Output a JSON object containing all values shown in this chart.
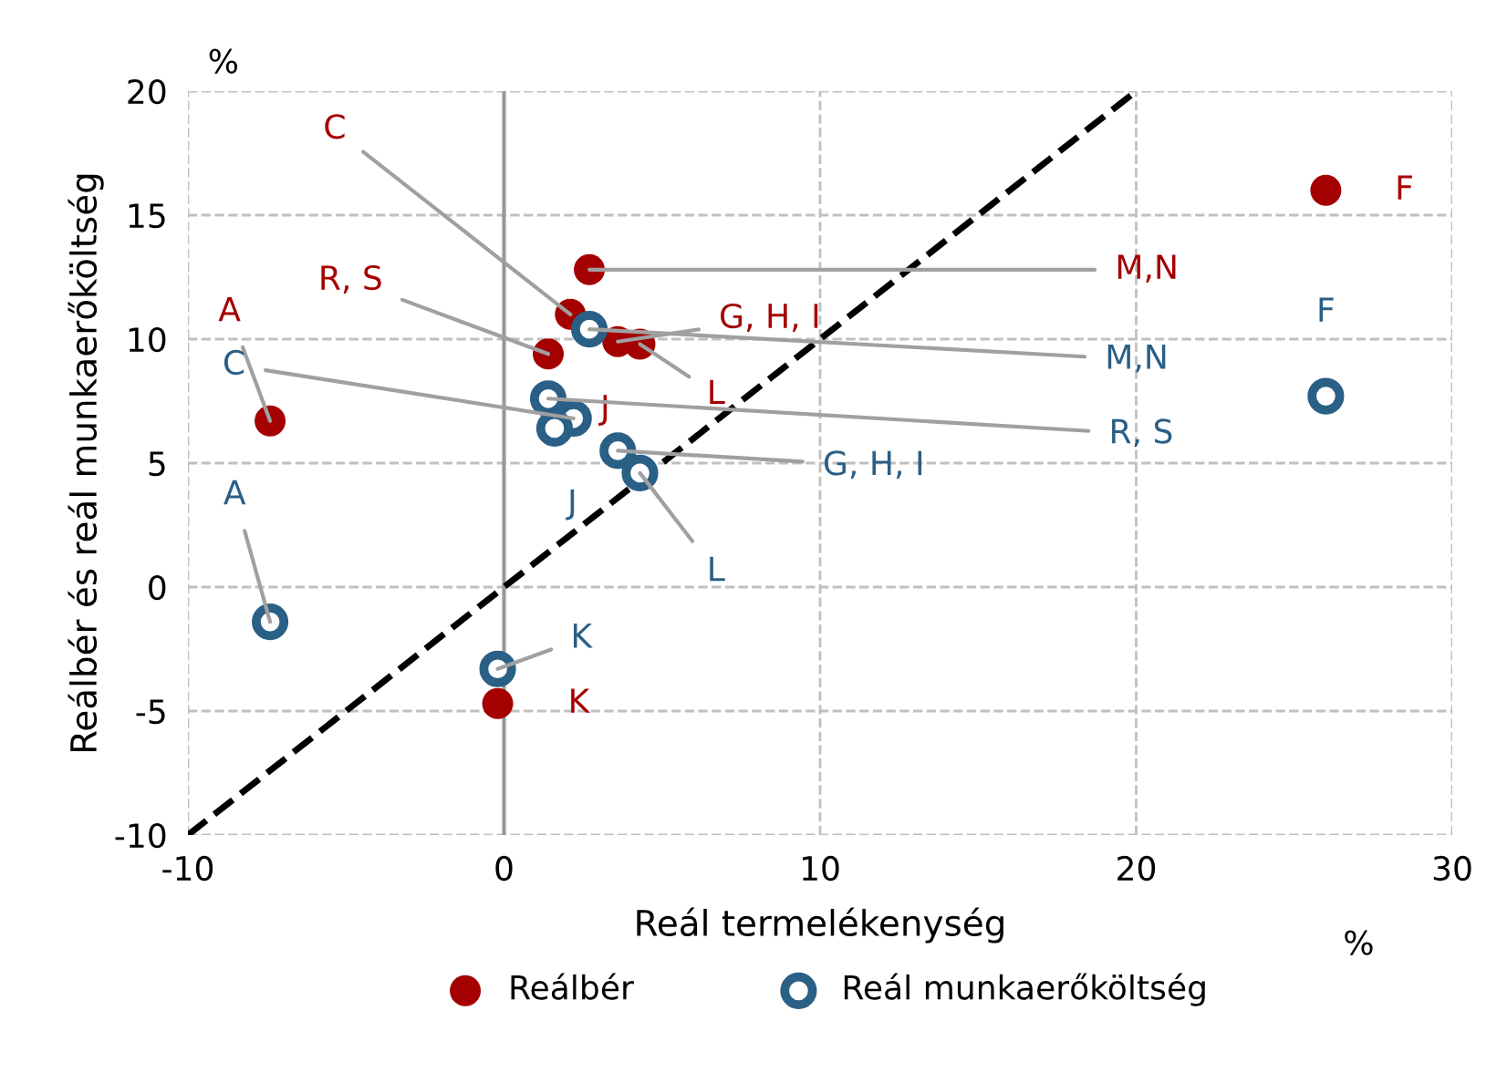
{
  "chart_data": {
    "type": "scatter",
    "xlabel": "Reál termelékenység",
    "ylabel": "Reálbér és reál munkaerőköltség",
    "xlim": [
      -10,
      30
    ],
    "ylim": [
      -10,
      20
    ],
    "xticks": [
      -10,
      0,
      10,
      20,
      30
    ],
    "yticks": [
      -10,
      -5,
      0,
      5,
      10,
      15,
      20
    ],
    "grid": true,
    "legend": "bottom",
    "marker": "circle",
    "ref_lines": [
      {
        "axis": "x",
        "value": 0,
        "color": "#999999"
      }
    ],
    "series": [
      {
        "type": "line",
        "x": [
          -10,
          20
        ],
        "values": [
          -10,
          20
        ],
        "color": "#000000",
        "line_style": "dashed",
        "marker": "none"
      },
      {
        "name": "Reálbér",
        "color": "#a50000",
        "x": [
          -7.4,
          26.0,
          2.7,
          2.1,
          1.4,
          3.6,
          4.3,
          -0.2
        ],
        "values": [
          6.7,
          16.0,
          12.8,
          11.0,
          9.4,
          9.9,
          9.8,
          -4.7
        ]
      },
      {
        "name": "Reál munkaerőköltség",
        "color": "#2a5f86",
        "x": [
          -7.4,
          26.0,
          2.7,
          1.4,
          2.2,
          1.6,
          3.6,
          4.3,
          -0.2
        ],
        "values": [
          -1.4,
          7.7,
          10.4,
          7.6,
          6.8,
          6.4,
          5.5,
          4.6,
          -3.3
        ]
      }
    ],
    "annotations": [
      "%",
      "%",
      "J",
      {
        "text": "A",
        "x": -7.4,
        "y": 6.7
      },
      {
        "text": "F",
        "x": 26.0,
        "y": 16.0
      },
      {
        "text": "M,N",
        "x": 2.7,
        "y": 12.8
      },
      {
        "text": "C",
        "x": 2.1,
        "y": 11.0
      },
      {
        "text": "R, S",
        "x": 1.4,
        "y": 9.4
      },
      {
        "text": "G, H, I",
        "x": 3.6,
        "y": 9.9
      },
      {
        "text": "L",
        "x": 4.3,
        "y": 9.8
      },
      {
        "text": "K",
        "x": -0.2,
        "y": -4.7
      },
      {
        "text": "A",
        "x": -7.4,
        "y": -1.4
      },
      {
        "text": "F",
        "x": 26.0,
        "y": 7.7
      },
      {
        "text": "M,N",
        "x": 2.7,
        "y": 10.4
      },
      {
        "text": "R, S",
        "x": 1.4,
        "y": 7.6
      },
      {
        "text": "C",
        "x": 2.2,
        "y": 6.8
      },
      {
        "text": "J",
        "x": 1.6,
        "y": 6.4
      },
      {
        "text": "G, H, I",
        "x": 3.6,
        "y": 5.5
      },
      {
        "text": "L",
        "x": 4.3,
        "y": 4.6
      },
      {
        "text": "K",
        "x": -0.2,
        "y": -3.3
      }
    ]
  }
}
